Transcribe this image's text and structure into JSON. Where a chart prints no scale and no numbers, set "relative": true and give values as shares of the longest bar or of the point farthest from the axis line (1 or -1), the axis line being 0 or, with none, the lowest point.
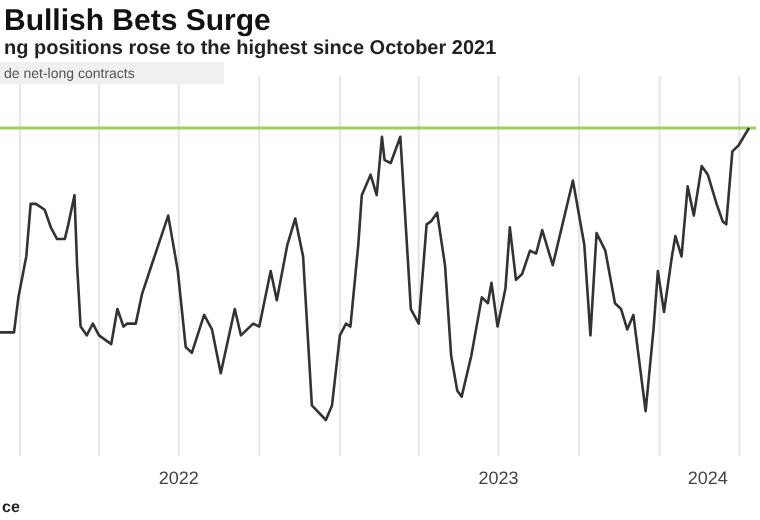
{
  "chart_data": {
    "type": "line",
    "title": "Bullish Bets Surge",
    "subtitle": "ng positions rose to the highest since October 2021",
    "relative": true,
    "x": [
      "2021-12-09",
      "2021-12-25",
      "2021-12-30",
      "2022-01-08",
      "2022-01-13",
      "2022-01-19",
      "2022-01-29",
      "2022-02-05",
      "2022-02-12",
      "2022-02-21",
      "2022-02-25",
      "2022-03-04",
      "2022-03-07",
      "2022-03-11",
      "2022-03-18",
      "2022-03-25",
      "2022-04-01",
      "2022-04-15",
      "2022-04-22",
      "2022-04-29",
      "2022-05-03",
      "2022-05-13",
      "2022-05-20",
      "2022-05-31",
      "2022-06-19",
      "2022-06-26",
      "2022-06-30",
      "2022-07-09",
      "2022-07-16",
      "2022-07-30",
      "2022-08-08",
      "2022-08-18",
      "2022-09-03",
      "2022-09-10",
      "2022-09-24",
      "2022-10-01",
      "2022-10-14",
      "2022-10-21",
      "2022-11-02",
      "2022-11-11",
      "2022-11-20",
      "2022-11-30",
      "2022-12-16",
      "2022-12-23",
      "2023-01-01",
      "2023-01-08",
      "2023-01-13",
      "2023-01-22",
      "2023-01-26",
      "2023-02-05",
      "2023-02-12",
      "2023-02-18",
      "2023-02-21",
      "2023-02-28",
      "2023-03-11",
      "2023-03-23",
      "2023-04-01",
      "2023-04-10",
      "2023-04-15",
      "2023-04-22",
      "2023-05-01",
      "2023-05-08",
      "2023-05-15",
      "2023-05-20",
      "2023-05-31",
      "2023-06-12",
      "2023-06-19",
      "2023-06-23",
      "2023-06-30",
      "2023-07-09",
      "2023-07-14",
      "2023-07-21",
      "2023-07-28",
      "2023-08-06",
      "2023-08-13",
      "2023-08-20",
      "2023-09-01",
      "2023-09-24",
      "2023-10-07",
      "2023-10-14",
      "2023-10-21",
      "2023-10-31",
      "2023-11-11",
      "2023-11-18",
      "2023-11-25",
      "2023-12-02",
      "2023-12-16",
      "2023-12-25",
      "2023-12-30",
      "2024-01-06",
      "2024-01-15",
      "2024-01-19",
      "2024-01-26",
      "2024-02-02",
      "2024-02-09",
      "2024-02-18",
      "2024-02-25",
      "2024-03-06",
      "2024-03-13",
      "2024-03-17",
      "2024-03-24",
      "2024-03-31",
      "2024-04-12"
    ],
    "series": [
      {
        "name": "de net-long contracts",
        "color": "#333333",
        "values": [
          0.3,
          0.3,
          0.42,
          0.56,
          0.74,
          0.74,
          0.72,
          0.66,
          0.62,
          0.62,
          0.67,
          0.77,
          0.53,
          0.32,
          0.29,
          0.33,
          0.29,
          0.26,
          0.38,
          0.32,
          0.33,
          0.33,
          0.43,
          0.53,
          0.7,
          0.58,
          0.51,
          0.25,
          0.23,
          0.36,
          0.31,
          0.16,
          0.38,
          0.29,
          0.33,
          0.32,
          0.51,
          0.41,
          0.6,
          0.69,
          0.56,
          0.05,
          0,
          0.05,
          0.29,
          0.33,
          0.32,
          0.6,
          0.77,
          0.84,
          0.77,
          0.97,
          0.89,
          0.88,
          0.97,
          0.38,
          0.33,
          0.67,
          0.68,
          0.71,
          0.53,
          0.22,
          0.1,
          0.08,
          0.22,
          0.42,
          0.4,
          0.47,
          0.32,
          0.45,
          0.66,
          0.48,
          0.5,
          0.58,
          0.57,
          0.65,
          0.53,
          0.82,
          0.6,
          0.29,
          0.64,
          0.58,
          0.4,
          0.38,
          0.31,
          0.36,
          0.03,
          0.31,
          0.51,
          0.37,
          0.56,
          0.63,
          0.56,
          0.8,
          0.7,
          0.87,
          0.84,
          0.74,
          0.68,
          0.67,
          0.92,
          0.94,
          1
        ]
      }
    ],
    "xlim": [
      "2021-12-09",
      "2024-04-20"
    ],
    "xticks": [
      {
        "value": "2022-01-01",
        "label": null
      },
      {
        "value": "2022-04-01",
        "label": null
      },
      {
        "value": "2022-07-01",
        "label": "2022"
      },
      {
        "value": "2022-10-01",
        "label": null
      },
      {
        "value": "2023-01-01",
        "label": null
      },
      {
        "value": "2023-04-01",
        "label": null
      },
      {
        "value": "2023-07-01",
        "label": "2023"
      },
      {
        "value": "2023-10-01",
        "label": null
      },
      {
        "value": "2024-01-01",
        "label": null
      },
      {
        "value": "2024-02-25",
        "label": "2024"
      },
      {
        "value": "2024-04-01",
        "label": null
      }
    ],
    "ref_lines": [
      {
        "axis": "y",
        "value": 1,
        "color": "#9ed05a"
      }
    ],
    "grid": "x",
    "legend": "top left",
    "line_style": "solid",
    "annotations": [
      "ce"
    ]
  }
}
